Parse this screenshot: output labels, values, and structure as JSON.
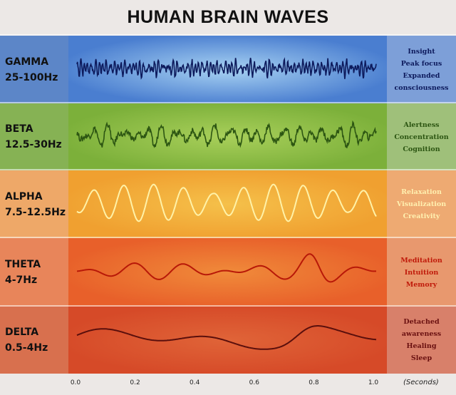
{
  "title": "HUMAN BRAIN WAVES",
  "bands": [
    {
      "name": "GAMMA",
      "range": "25-100Hz",
      "effects": [
        "Insight",
        "Peak focus",
        "Expanded",
        "consciousness"
      ],
      "left_color": "#5c86c8",
      "mid_color": "#4a7ed0",
      "mid_center": "#a8d2f2",
      "right_color": "#7d9fd8",
      "wave_color": "#0d1a5c",
      "text_color": "#0d1a5c"
    },
    {
      "name": "BETA",
      "range": "12.5-30Hz",
      "effects": [
        "Alertness",
        "Concentration",
        "Cognition"
      ],
      "left_color": "#86b254",
      "mid_color": "#7cb03a",
      "mid_center": "#a8cf5a",
      "right_color": "#9fc07a",
      "wave_color": "#2c5512",
      "text_color": "#2c5512"
    },
    {
      "name": "ALPHA",
      "range": "7.5-12.5Hz",
      "effects": [
        "Relaxation",
        "Visualization",
        "Creativity"
      ],
      "left_color": "#eea868",
      "mid_color": "#f0a030",
      "mid_center": "#f5c04a",
      "right_color": "#eeaa72",
      "wave_color": "#fff2a8",
      "text_color": "#fff0b0"
    },
    {
      "name": "THETA",
      "range": "4-7Hz",
      "effects": [
        "Meditation",
        "Intuition",
        "Memory"
      ],
      "left_color": "#e8855a",
      "mid_color": "#e8602a",
      "mid_center": "#f08a3a",
      "right_color": "#e8986e",
      "wave_color": "#b81808",
      "text_color": "#c01a0a"
    },
    {
      "name": "DELTA",
      "range": "0.5-4Hz",
      "effects": [
        "Detached",
        "awareness",
        "Healing",
        "Sleep"
      ],
      "left_color": "#d8704e",
      "mid_color": "#d64a28",
      "mid_center": "#e06438",
      "right_color": "#d8806a",
      "wave_color": "#5a0f0c",
      "text_color": "#6a1010"
    }
  ],
  "axis": {
    "ticks": [
      "0.0",
      "0.2",
      "0.4",
      "0.6",
      "0.8",
      "1.0"
    ],
    "unit": "(Seconds)"
  }
}
